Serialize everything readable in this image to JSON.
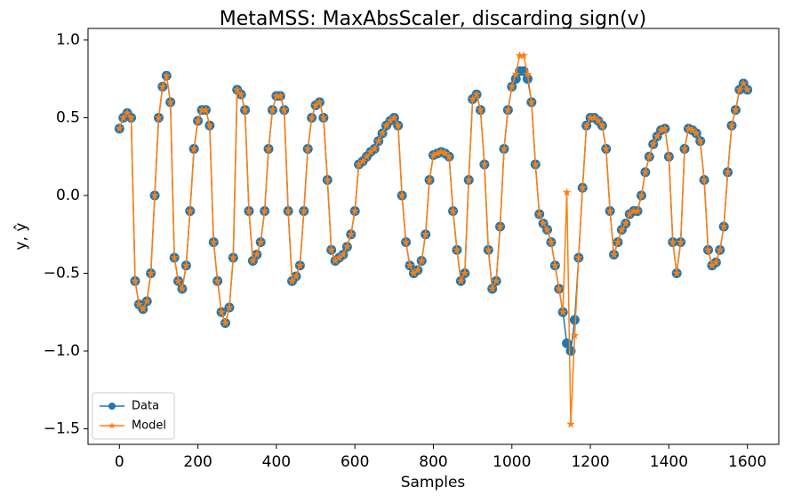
{
  "chart_data": {
    "type": "line",
    "title": "MetaMSS: MaxAbsScaler, discarding sign(v)",
    "xlabel": "Samples",
    "ylabel": "y, ŷ",
    "xlim": [
      -80,
      1680
    ],
    "ylim": [
      -1.6,
      1.074
    ],
    "xticks": [
      0,
      200,
      400,
      600,
      800,
      1000,
      1200,
      1400,
      1600
    ],
    "yticks": [
      {
        "value": -1.5,
        "label": "−1.5"
      },
      {
        "value": -1.0,
        "label": "−1.0"
      },
      {
        "value": -0.5,
        "label": "−0.5"
      },
      {
        "value": 0,
        "label": "0.0"
      },
      {
        "value": 0.5,
        "label": "0.5"
      },
      {
        "value": 1.0,
        "label": "1.0"
      }
    ],
    "legend": "lower left",
    "x": [
      0,
      10,
      20,
      30,
      40,
      50,
      60,
      70,
      80,
      90,
      100,
      110,
      120,
      130,
      140,
      150,
      160,
      170,
      180,
      190,
      200,
      210,
      220,
      230,
      240,
      250,
      260,
      270,
      280,
      290,
      300,
      310,
      320,
      330,
      340,
      350,
      360,
      370,
      380,
      390,
      400,
      410,
      420,
      430,
      440,
      450,
      460,
      470,
      480,
      490,
      500,
      510,
      520,
      530,
      540,
      550,
      560,
      570,
      580,
      590,
      600,
      610,
      620,
      630,
      640,
      650,
      660,
      670,
      680,
      690,
      700,
      710,
      720,
      730,
      740,
      750,
      760,
      770,
      780,
      790,
      800,
      810,
      820,
      830,
      840,
      850,
      860,
      870,
      880,
      890,
      900,
      910,
      920,
      930,
      940,
      950,
      960,
      970,
      980,
      990,
      1000,
      1010,
      1020,
      1030,
      1040,
      1050,
      1060,
      1070,
      1080,
      1090,
      1100,
      1110,
      1120,
      1130,
      1140,
      1150,
      1160,
      1170,
      1180,
      1190,
      1200,
      1210,
      1220,
      1230,
      1240,
      1250,
      1260,
      1270,
      1280,
      1290,
      1300,
      1310,
      1320,
      1330,
      1340,
      1350,
      1360,
      1370,
      1380,
      1390,
      1400,
      1410,
      1420,
      1430,
      1440,
      1450,
      1460,
      1470,
      1480,
      1490,
      1500,
      1510,
      1520,
      1530,
      1540,
      1550,
      1560,
      1570,
      1580,
      1590,
      1600
    ],
    "series": [
      {
        "name": "Data",
        "color": "#1f77b4",
        "marker": "circle",
        "values": [
          0.43,
          0.5,
          0.53,
          0.5,
          -0.55,
          -0.7,
          -0.73,
          -0.68,
          -0.5,
          0.0,
          0.5,
          0.7,
          0.77,
          0.6,
          -0.4,
          -0.55,
          -0.6,
          -0.45,
          -0.1,
          0.3,
          0.48,
          0.55,
          0.55,
          0.45,
          -0.3,
          -0.55,
          -0.75,
          -0.82,
          -0.72,
          -0.4,
          0.68,
          0.65,
          0.55,
          -0.1,
          -0.42,
          -0.38,
          -0.3,
          -0.1,
          0.3,
          0.55,
          0.64,
          0.64,
          0.55,
          -0.1,
          -0.55,
          -0.52,
          -0.45,
          -0.1,
          0.3,
          0.5,
          0.58,
          0.6,
          0.5,
          0.1,
          -0.35,
          -0.42,
          -0.4,
          -0.38,
          -0.33,
          -0.25,
          -0.1,
          0.2,
          0.22,
          0.25,
          0.28,
          0.3,
          0.35,
          0.4,
          0.45,
          0.48,
          0.5,
          0.45,
          0.0,
          -0.3,
          -0.45,
          -0.5,
          -0.48,
          -0.42,
          -0.25,
          0.1,
          0.26,
          0.27,
          0.28,
          0.27,
          0.25,
          -0.1,
          -0.35,
          -0.55,
          -0.5,
          0.1,
          0.62,
          0.65,
          0.55,
          0.2,
          -0.35,
          -0.6,
          -0.55,
          -0.2,
          0.3,
          0.55,
          0.7,
          0.75,
          0.8,
          0.8,
          0.75,
          0.6,
          0.2,
          -0.12,
          -0.18,
          -0.22,
          -0.3,
          -0.45,
          -0.6,
          -0.75,
          -0.95,
          -1.0,
          -0.8,
          -0.4,
          0.05,
          0.45,
          0.5,
          0.5,
          0.48,
          0.45,
          0.3,
          -0.1,
          -0.38,
          -0.3,
          -0.22,
          -0.18,
          -0.12,
          -0.1,
          -0.1,
          0.0,
          0.15,
          0.25,
          0.33,
          0.38,
          0.42,
          0.43,
          0.25,
          -0.3,
          -0.5,
          -0.3,
          0.3,
          0.43,
          0.42,
          0.4,
          0.35,
          0.1,
          -0.35,
          -0.45,
          -0.43,
          -0.35,
          -0.2,
          0.15,
          0.45,
          0.55,
          0.68,
          0.72,
          0.68
        ]
      },
      {
        "name": "Model",
        "color": "#ff7f0e",
        "marker": "star",
        "values": [
          0.43,
          0.5,
          0.53,
          0.5,
          -0.55,
          -0.7,
          -0.73,
          -0.68,
          -0.5,
          0.0,
          0.5,
          0.7,
          0.77,
          0.6,
          -0.4,
          -0.55,
          -0.6,
          -0.45,
          -0.1,
          0.3,
          0.48,
          0.55,
          0.55,
          0.45,
          -0.3,
          -0.55,
          -0.75,
          -0.82,
          -0.72,
          -0.4,
          0.68,
          0.65,
          0.55,
          -0.1,
          -0.42,
          -0.38,
          -0.3,
          -0.1,
          0.3,
          0.55,
          0.64,
          0.64,
          0.55,
          -0.1,
          -0.55,
          -0.52,
          -0.45,
          -0.1,
          0.3,
          0.5,
          0.58,
          0.6,
          0.5,
          0.1,
          -0.35,
          -0.42,
          -0.4,
          -0.38,
          -0.33,
          -0.25,
          -0.1,
          0.2,
          0.22,
          0.25,
          0.28,
          0.3,
          0.35,
          0.4,
          0.45,
          0.48,
          0.5,
          0.45,
          0.0,
          -0.3,
          -0.45,
          -0.5,
          -0.48,
          -0.42,
          -0.25,
          0.1,
          0.26,
          0.27,
          0.28,
          0.27,
          0.25,
          -0.1,
          -0.35,
          -0.55,
          -0.5,
          0.1,
          0.62,
          0.65,
          0.55,
          0.2,
          -0.35,
          -0.6,
          -0.55,
          -0.2,
          0.3,
          0.55,
          0.7,
          0.78,
          0.9,
          0.9,
          0.78,
          0.6,
          0.2,
          -0.12,
          -0.18,
          -0.22,
          -0.3,
          -0.45,
          -0.6,
          -0.75,
          0.02,
          -1.47,
          -0.9,
          -0.4,
          0.05,
          0.45,
          0.5,
          0.5,
          0.48,
          0.45,
          0.3,
          -0.1,
          -0.38,
          -0.3,
          -0.22,
          -0.18,
          -0.12,
          -0.1,
          -0.1,
          0.0,
          0.15,
          0.25,
          0.33,
          0.38,
          0.42,
          0.43,
          0.25,
          -0.3,
          -0.5,
          -0.3,
          0.3,
          0.43,
          0.42,
          0.4,
          0.35,
          0.1,
          -0.35,
          -0.45,
          -0.43,
          -0.35,
          -0.2,
          0.15,
          0.45,
          0.55,
          0.68,
          0.72,
          0.68
        ]
      }
    ]
  }
}
